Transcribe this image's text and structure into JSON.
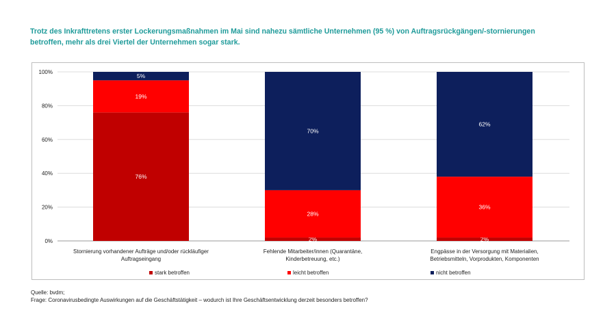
{
  "headline": {
    "line1": "Trotz des Inkrafttretens erster Lockerungsmaßnahmen im Mai sind nahezu sämtliche Unternehmen (95 %) von Auftragsrückgängen/-stornierungen",
    "line2": "betroffen, mehr als drei Viertel der Unternehmen sogar stark."
  },
  "chart_data": {
    "type": "bar",
    "stacked": true,
    "categories": [
      [
        "Stornierung vorhandener Aufträge und/oder rückläufiger",
        "Auftragseingang"
      ],
      [
        "Fehlende Mitarbeiter/innen (Quarantäne,",
        "Kinderbetreuung, etc.)"
      ],
      [
        "Engpässe in der Versorgung mit Materialien,",
        "Betriebsmitteln, Vorprodukten, Komponenten"
      ]
    ],
    "series": [
      {
        "name": "stark betroffen",
        "color": "#c00000",
        "values": [
          76,
          2,
          2
        ],
        "labels": [
          "76%",
          "2%",
          "2%"
        ]
      },
      {
        "name": "leicht betroffen",
        "color": "#ff0000",
        "values": [
          19,
          28,
          36
        ],
        "labels": [
          "19%",
          "28%",
          "36%"
        ]
      },
      {
        "name": "nicht betroffen",
        "color": "#0d1f5c",
        "values": [
          5,
          70,
          62
        ],
        "labels": [
          "5%",
          "70%",
          "62%"
        ]
      }
    ],
    "ylim": [
      0,
      100
    ],
    "yticks": [
      "0%",
      "20%",
      "40%",
      "60%",
      "80%",
      "100%"
    ],
    "grid": true,
    "legend_position": "bottom"
  },
  "source": {
    "line1": "Quelle: bvdm;",
    "line2": "Frage: Coronavirusbedingte Auswirkungen auf die Geschäftstätigkeit – wodurch ist Ihre Geschäftsentwicklung derzeit besonders betroffen?"
  }
}
